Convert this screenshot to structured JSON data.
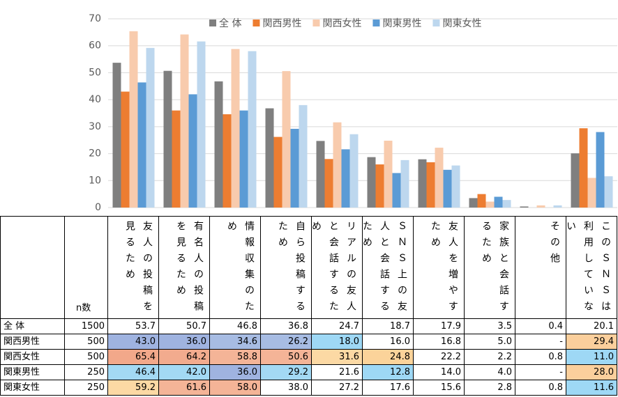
{
  "chart_data": {
    "type": "bar",
    "categories": [
      "友人の投稿を見るため",
      "有名人の投稿を見るため",
      "情報収集のため",
      "自ら投稿するため",
      "リアルの友人と会話するため",
      "ＳＮＳ上の友人と会話するため",
      "友人を増やすため",
      "家族と会話するため",
      "その他",
      "このＳＮＳは利用していない"
    ],
    "n_label": "n数",
    "series": [
      {
        "name": "全 体",
        "color": "#7f7f7f",
        "n": 1500,
        "values": [
          53.7,
          50.7,
          46.8,
          36.8,
          24.7,
          18.7,
          17.9,
          3.5,
          0.4,
          20.1
        ],
        "value_labels": [
          "53.7",
          "50.7",
          "46.8",
          "36.8",
          "24.7",
          "18.7",
          "17.9",
          "3.5",
          "0.4",
          "20.1"
        ],
        "cell_colors": [
          null,
          null,
          null,
          null,
          null,
          null,
          null,
          null,
          null,
          null
        ]
      },
      {
        "name": "関西男性",
        "color": "#ed7d31",
        "n": 500,
        "values": [
          43.0,
          36.0,
          34.6,
          26.2,
          18.0,
          16.0,
          16.8,
          5.0,
          null,
          29.4
        ],
        "value_labels": [
          "43.0",
          "36.0",
          "34.6",
          "26.2",
          "18.0",
          "16.0",
          "16.8",
          "5.0",
          "-",
          "29.4"
        ],
        "cell_colors": [
          "#9fb3e0",
          "#9fb3e0",
          "#a7bce3",
          "#a7bce3",
          "#9ed8f5",
          null,
          null,
          null,
          null,
          "#fbcf9c"
        ]
      },
      {
        "name": "関西女性",
        "color": "#f8cbad",
        "n": 500,
        "values": [
          65.4,
          64.2,
          58.8,
          50.6,
          31.6,
          24.8,
          22.2,
          2.2,
          0.8,
          11.0
        ],
        "value_labels": [
          "65.4",
          "64.2",
          "58.8",
          "50.6",
          "31.6",
          "24.8",
          "22.2",
          "2.2",
          "0.8",
          "11.0"
        ],
        "cell_colors": [
          "#f2a88a",
          "#f2ab8e",
          "#f4b497",
          "#f4b497",
          "#fcd9a4",
          "#fbd39a",
          null,
          null,
          null,
          "#9ed8f5"
        ]
      },
      {
        "name": "関東男性",
        "color": "#5b9bd5",
        "n": 250,
        "values": [
          46.4,
          42.0,
          36.0,
          29.2,
          21.6,
          12.8,
          14.0,
          4.0,
          null,
          28.0
        ],
        "value_labels": [
          "46.4",
          "42.0",
          "36.0",
          "29.2",
          "21.6",
          "12.8",
          "14.0",
          "4.0",
          "-",
          "28.0"
        ],
        "cell_colors": [
          "#a3d9f4",
          "#a3d9f4",
          "#9fb3e0",
          "#a3d9f4",
          null,
          "#9ed8f5",
          null,
          null,
          null,
          "#fbcf9c"
        ]
      },
      {
        "name": "関東女性",
        "color": "#bdd7ee",
        "n": 250,
        "values": [
          59.2,
          61.6,
          58.0,
          38.0,
          27.2,
          17.6,
          15.6,
          2.8,
          0.8,
          11.6
        ],
        "value_labels": [
          "59.2",
          "61.6",
          "58.0",
          "38.0",
          "27.2",
          "17.6",
          "15.6",
          "2.8",
          "0.8",
          "11.6"
        ],
        "cell_colors": [
          "#fcd9a4",
          "#f4b497",
          "#f4b497",
          null,
          null,
          null,
          null,
          null,
          null,
          "#9ed8f5"
        ]
      }
    ],
    "ylim": [
      0,
      70
    ],
    "yticks": [
      0,
      10,
      20,
      30,
      40,
      50,
      60,
      70
    ],
    "grid": true,
    "legend": "top"
  }
}
